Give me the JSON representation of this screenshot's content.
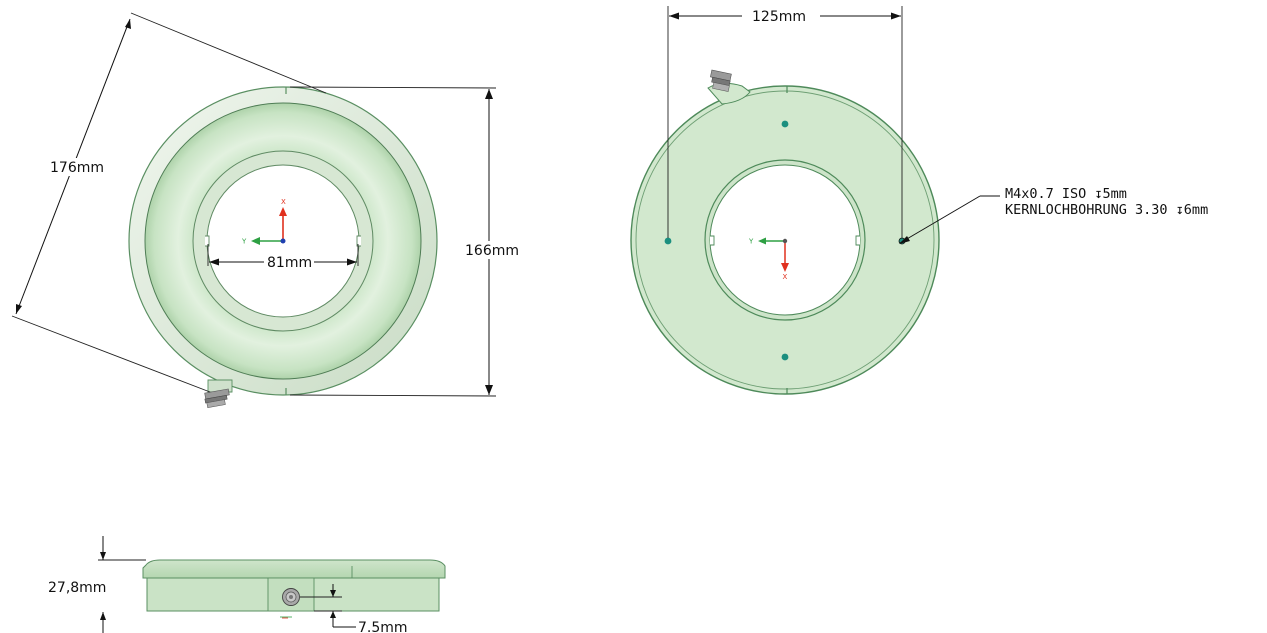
{
  "colors": {
    "body_green": "#d3e8cf",
    "light_green": "#e6f2e3",
    "edge_green": "#5a8f62",
    "dark_green": "#3f7a4b",
    "hole_teal": "#1b8f7f",
    "dim_line": "#111111",
    "axis_red": "#e0301e",
    "axis_green": "#2ea043",
    "axis_blue": "#1f3fb0"
  },
  "front_view": {
    "diagonal_dim": "176mm",
    "height_dim": "166mm",
    "inner_dia_dim": "81mm",
    "axis_x": "X",
    "axis_y": "Y"
  },
  "back_view": {
    "hole_spacing_dim": "125mm",
    "thread_note_line1": "M4x0.7 ISO ↧5mm",
    "thread_note_line2": "KERNLOCHBOHRUNG 3.30 ↧6mm",
    "axis_x": "X",
    "axis_y": "Y"
  },
  "side_view": {
    "thickness_dim": "27,8mm",
    "connector_offset_dim": "7.5mm"
  }
}
